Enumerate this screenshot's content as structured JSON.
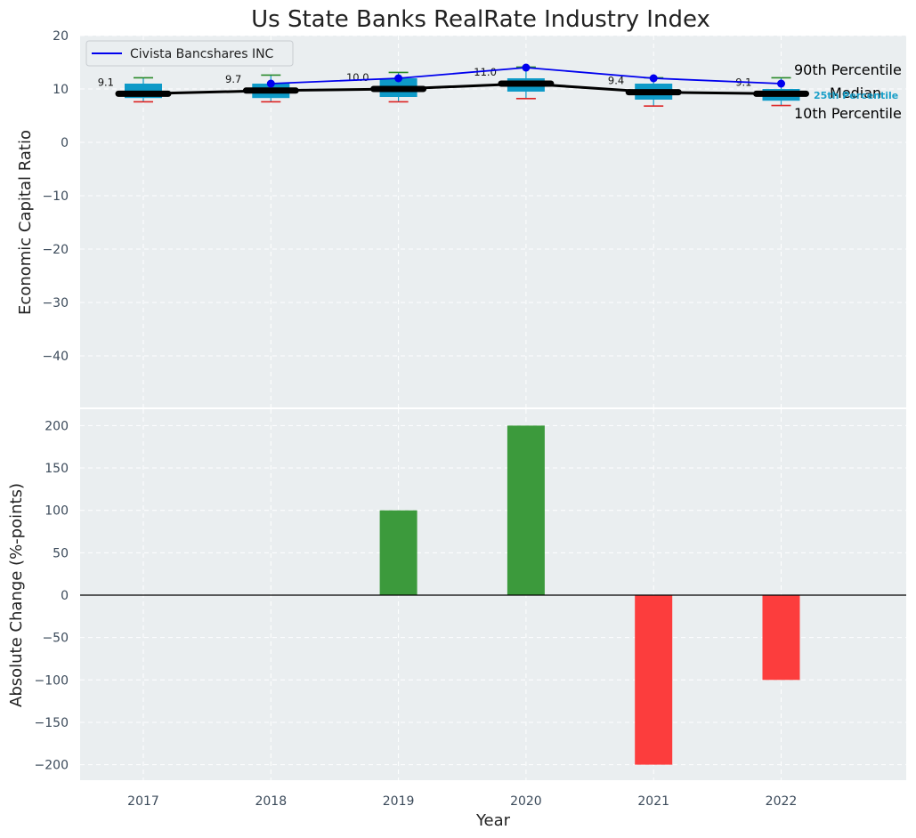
{
  "title": "Us State Banks RealRate Industry Index",
  "colors": {
    "panel_bg": "#eaeef0",
    "box_fill": "#0e9ac8",
    "median": "#000000",
    "company": "#0000ee",
    "whisker_high": "#2a8a2a",
    "whisker_low": "#dd2222",
    "bar_pos": "#3c9a3c",
    "bar_neg": "#fc3d3d",
    "percentile25": "#1a9fc8"
  },
  "chart_data": [
    {
      "type": "box-line",
      "ylabel": "Economic Capital Ratio",
      "ylim": [
        -50,
        20
      ],
      "yticks": [
        20,
        10,
        0,
        -10,
        -20,
        -30,
        -40
      ],
      "categories": [
        "2017",
        "2018",
        "2019",
        "2020",
        "2021",
        "2022"
      ],
      "median": [
        9.1,
        9.7,
        10.0,
        11.0,
        9.4,
        9.1
      ],
      "median_labels": [
        "9.1",
        "9.7",
        "10.0",
        "11.0",
        "9.4",
        "9.1"
      ],
      "p10": [
        7.6,
        7.6,
        7.6,
        8.2,
        6.8,
        6.9
      ],
      "p25": [
        8.3,
        8.3,
        8.5,
        9.5,
        8.0,
        7.8
      ],
      "p75": [
        11.0,
        11.0,
        12.0,
        12.0,
        11.0,
        10.0
      ],
      "p90": [
        12.1,
        12.6,
        13.1,
        14.1,
        12.1,
        12.1
      ],
      "company": {
        "name": "Civista Bancshares INC",
        "x": [
          "2018",
          "2019",
          "2020",
          "2021",
          "2022"
        ],
        "values": [
          11.0,
          12.0,
          14.0,
          12.0,
          11.0
        ]
      },
      "legend": {
        "entry": "Civista Bancshares INC",
        "position": "top-left"
      },
      "annotations": {
        "p90": "90th Percentile",
        "median": "Median",
        "p25": "25th Percentile",
        "p10": "10th Percentile"
      }
    },
    {
      "type": "bar",
      "xlabel": "Year",
      "ylabel": "Absolute Change (%-points)",
      "ylim": [
        -218,
        218
      ],
      "yticks": [
        200,
        150,
        100,
        50,
        0,
        -50,
        -100,
        -150,
        -200
      ],
      "categories": [
        "2017",
        "2018",
        "2019",
        "2020",
        "2021",
        "2022"
      ],
      "values": [
        0,
        0,
        100,
        200,
        -200,
        -100
      ]
    }
  ]
}
